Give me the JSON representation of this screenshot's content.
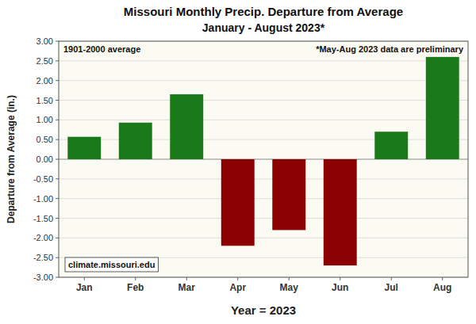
{
  "chart_data": {
    "type": "bar",
    "title": "Missouri Monthly Precip. Departure from Average",
    "subtitle": "January - August 2023*",
    "x_label": "Year = 2023",
    "y_label": "Departure from Average (in.)",
    "categories": [
      "Jan",
      "Feb",
      "Mar",
      "Apr",
      "May",
      "Jun",
      "Jul",
      "Aug"
    ],
    "values": [
      0.57,
      0.93,
      1.65,
      -2.2,
      -1.8,
      -2.7,
      0.7,
      2.6
    ],
    "colors": [
      "#1a7a1a",
      "#1a7a1a",
      "#1a7a1a",
      "#8b0000",
      "#8b0000",
      "#8b0000",
      "#1a7a1a",
      "#1a7a1a"
    ],
    "ylim": [
      -3.0,
      3.0
    ],
    "yticks": [
      {
        "value": -3.0,
        "label": "-3.00"
      },
      {
        "value": -2.5,
        "label": "-2.50"
      },
      {
        "value": -2.0,
        "label": "-2.00"
      },
      {
        "value": -1.5,
        "label": "-1.50"
      },
      {
        "value": -1.0,
        "label": "-1.00"
      },
      {
        "value": -0.5,
        "label": "-0.50"
      },
      {
        "value": 0.0,
        "label": "0.00"
      },
      {
        "value": 0.5,
        "label": "0.50"
      },
      {
        "value": 1.0,
        "label": "1.00"
      },
      {
        "value": 1.5,
        "label": "1.50"
      },
      {
        "value": 2.0,
        "label": "2.00"
      },
      {
        "value": 2.5,
        "label": "2.50"
      },
      {
        "value": 3.0,
        "label": "3.00"
      }
    ],
    "grid": true,
    "annotations": [
      "1901-2000 average",
      "*May-Aug 2023 data are preliminary",
      "climate.missouri.edu"
    ]
  }
}
